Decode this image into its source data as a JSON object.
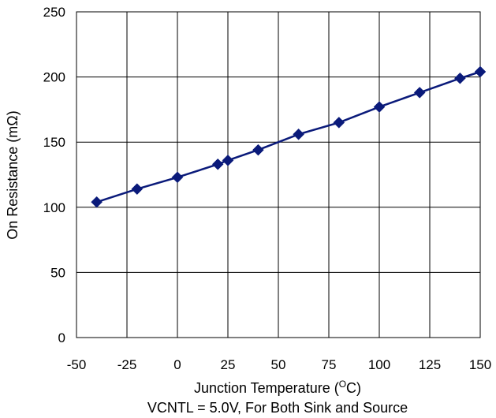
{
  "chart_data": {
    "type": "line",
    "title": "",
    "xlabel": "Junction Temperature (",
    "xlabel_unit_sup": "O",
    "xlabel_unit_end": "C)",
    "ylabel": "On Resistance (mΩ)",
    "note": "VCNTL = 5.0V, For Both Sink and Source",
    "xlim": [
      -50,
      150
    ],
    "ylim": [
      0,
      250
    ],
    "x_ticks": [
      "-50",
      "-25",
      "0",
      "25",
      "50",
      "75",
      "100",
      "125",
      "150"
    ],
    "y_ticks": [
      "0",
      "50",
      "100",
      "150",
      "200",
      "250"
    ],
    "grid": true,
    "series": [
      {
        "color": "#0a1a7a",
        "marker": "diamond",
        "x": [
          -40,
          -20,
          0,
          20,
          25,
          40,
          60,
          80,
          100,
          120,
          140,
          150
        ],
        "y": [
          104,
          114,
          123,
          133,
          136,
          144,
          156,
          165,
          177,
          188,
          199,
          204
        ]
      }
    ]
  }
}
